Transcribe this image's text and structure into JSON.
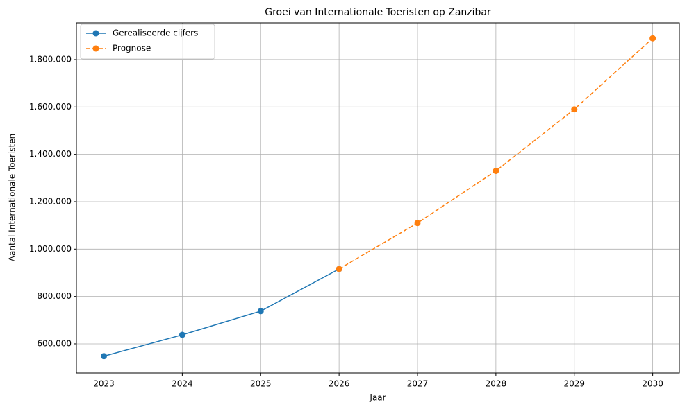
{
  "chart_data": {
    "type": "line",
    "title": "Groei van Internationale Toeristen op Zanzibar",
    "xlabel": "Jaar",
    "ylabel": "Aantal Internationale Toeristen",
    "x": [
      2023,
      2024,
      2025,
      2026,
      2027,
      2028,
      2029,
      2030
    ],
    "series": [
      {
        "name": "Gerealiseerde cijfers",
        "color": "#1f77b4",
        "linestyle": "solid",
        "marker": "circle",
        "values": [
          548000,
          638000,
          738000,
          916000,
          null,
          null,
          null,
          null
        ]
      },
      {
        "name": "Prognose",
        "color": "#ff7f0e",
        "linestyle": "dashed",
        "marker": "circle",
        "values": [
          null,
          null,
          null,
          916000,
          1110000,
          1330000,
          1590000,
          1890000
        ]
      }
    ],
    "xlim": [
      2022.65,
      2030.34
    ],
    "ylim": [
      477000,
      1955000
    ],
    "xticks": [
      2023,
      2024,
      2025,
      2026,
      2027,
      2028,
      2029,
      2030
    ],
    "yticks": [
      {
        "value": 600000,
        "label": "600.000"
      },
      {
        "value": 800000,
        "label": "800.000"
      },
      {
        "value": 1000000,
        "label": "1.000.000"
      },
      {
        "value": 1200000,
        "label": "1.200.000"
      },
      {
        "value": 1400000,
        "label": "1.400.000"
      },
      {
        "value": 1600000,
        "label": "1.600.000"
      },
      {
        "value": 1800000,
        "label": "1.800.000"
      }
    ],
    "grid": true,
    "legend": "upper-left"
  }
}
